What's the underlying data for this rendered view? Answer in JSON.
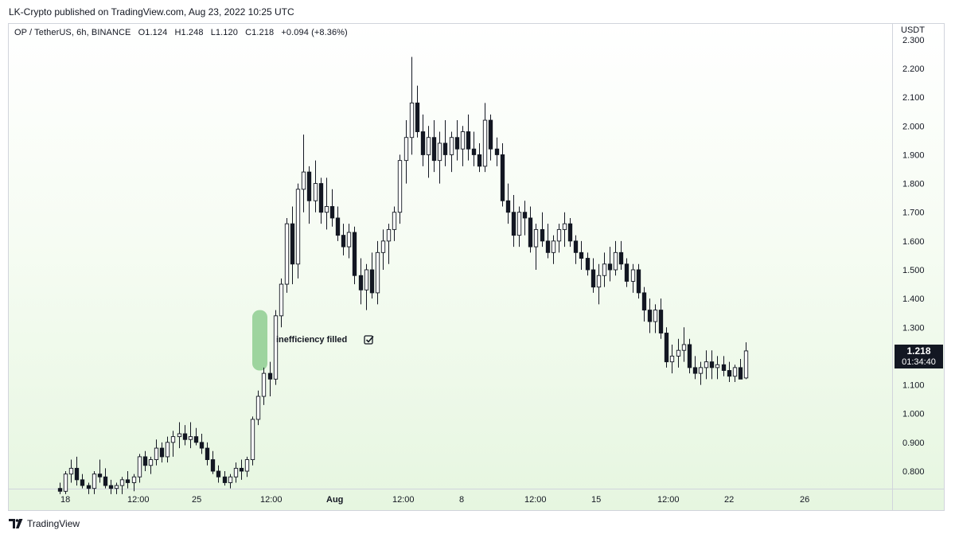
{
  "header": {
    "publisher": "LK-Crypto published on TradingView.com, Aug 23, 2022 10:25 UTC"
  },
  "symbol_info": {
    "pair": "OP / TetherUS, 6h, BINANCE",
    "open": "O1.124",
    "high": "H1.248",
    "low": "L1.120",
    "close": "C1.218",
    "change": "+0.094 (+8.36%)"
  },
  "price_axis": {
    "unit": "USDT",
    "ticks": [
      "2.300",
      "2.200",
      "2.100",
      "2.000",
      "1.900",
      "1.800",
      "1.700",
      "1.600",
      "1.500",
      "1.400",
      "1.300",
      "1.200",
      "1.100",
      "1.000",
      "0.900",
      "0.800"
    ]
  },
  "time_axis": {
    "ticks": [
      "18",
      "12:00",
      "25",
      "12:00",
      "Aug",
      "12:00",
      "8",
      "12:00",
      "15",
      "12:00",
      "22",
      "26"
    ]
  },
  "last_price": {
    "value": "1.218",
    "countdown": "01:34:40"
  },
  "annotation": {
    "label": "inefficiency filled",
    "check_icon": "checkbox-checked-icon"
  },
  "footer": {
    "brand": "TradingView",
    "logo_icon": "tradingview-logo-icon"
  },
  "colors": {
    "highlight": "#81c784",
    "bear": "#131722",
    "bull": "#ffffff"
  },
  "chart_data": {
    "type": "candlestick",
    "title": "OP / TetherUS, 6h, BINANCE",
    "ylabel": "USDT",
    "ylim": [
      0.72,
      2.32
    ],
    "interval": "6h",
    "candles_ohlc": [
      [
        0.74,
        0.76,
        0.72,
        0.73
      ],
      [
        0.73,
        0.8,
        0.72,
        0.79
      ],
      [
        0.79,
        0.84,
        0.76,
        0.81
      ],
      [
        0.81,
        0.85,
        0.75,
        0.77
      ],
      [
        0.77,
        0.79,
        0.74,
        0.75
      ],
      [
        0.75,
        0.76,
        0.72,
        0.74
      ],
      [
        0.74,
        0.8,
        0.72,
        0.79
      ],
      [
        0.79,
        0.84,
        0.76,
        0.78
      ],
      [
        0.78,
        0.81,
        0.74,
        0.75
      ],
      [
        0.75,
        0.77,
        0.72,
        0.74
      ],
      [
        0.74,
        0.76,
        0.72,
        0.75
      ],
      [
        0.75,
        0.78,
        0.72,
        0.77
      ],
      [
        0.77,
        0.8,
        0.74,
        0.76
      ],
      [
        0.76,
        0.79,
        0.73,
        0.78
      ],
      [
        0.78,
        0.86,
        0.76,
        0.85
      ],
      [
        0.85,
        0.87,
        0.8,
        0.82
      ],
      [
        0.82,
        0.85,
        0.79,
        0.84
      ],
      [
        0.84,
        0.91,
        0.82,
        0.88
      ],
      [
        0.88,
        0.9,
        0.83,
        0.85
      ],
      [
        0.85,
        0.92,
        0.83,
        0.9
      ],
      [
        0.9,
        0.94,
        0.85,
        0.92
      ],
      [
        0.92,
        0.97,
        0.88,
        0.93
      ],
      [
        0.93,
        0.96,
        0.89,
        0.91
      ],
      [
        0.91,
        0.97,
        0.88,
        0.92
      ],
      [
        0.92,
        0.95,
        0.89,
        0.9
      ],
      [
        0.9,
        0.93,
        0.86,
        0.88
      ],
      [
        0.88,
        0.9,
        0.82,
        0.84
      ],
      [
        0.84,
        0.87,
        0.79,
        0.8
      ],
      [
        0.8,
        0.82,
        0.76,
        0.78
      ],
      [
        0.78,
        0.8,
        0.75,
        0.76
      ],
      [
        0.76,
        0.79,
        0.74,
        0.78
      ],
      [
        0.78,
        0.83,
        0.76,
        0.81
      ],
      [
        0.81,
        0.84,
        0.77,
        0.8
      ],
      [
        0.8,
        0.85,
        0.78,
        0.84
      ],
      [
        0.84,
        0.99,
        0.82,
        0.98
      ],
      [
        0.98,
        1.08,
        0.96,
        1.06
      ],
      [
        1.06,
        1.16,
        1.03,
        1.14
      ],
      [
        1.14,
        1.18,
        1.06,
        1.12
      ],
      [
        1.12,
        1.36,
        1.1,
        1.34
      ],
      [
        1.34,
        1.47,
        1.3,
        1.45
      ],
      [
        1.45,
        1.68,
        1.42,
        1.66
      ],
      [
        1.66,
        1.72,
        1.45,
        1.52
      ],
      [
        1.52,
        1.8,
        1.47,
        1.78
      ],
      [
        1.78,
        1.97,
        1.7,
        1.84
      ],
      [
        1.84,
        1.86,
        1.66,
        1.74
      ],
      [
        1.74,
        1.88,
        1.7,
        1.8
      ],
      [
        1.8,
        1.82,
        1.66,
        1.7
      ],
      [
        1.7,
        1.82,
        1.64,
        1.72
      ],
      [
        1.72,
        1.78,
        1.65,
        1.68
      ],
      [
        1.68,
        1.72,
        1.6,
        1.62
      ],
      [
        1.62,
        1.66,
        1.55,
        1.58
      ],
      [
        1.58,
        1.66,
        1.54,
        1.63
      ],
      [
        1.63,
        1.65,
        1.45,
        1.48
      ],
      [
        1.48,
        1.54,
        1.38,
        1.43
      ],
      [
        1.43,
        1.52,
        1.36,
        1.5
      ],
      [
        1.5,
        1.56,
        1.4,
        1.42
      ],
      [
        1.42,
        1.6,
        1.38,
        1.56
      ],
      [
        1.56,
        1.64,
        1.5,
        1.6
      ],
      [
        1.6,
        1.66,
        1.52,
        1.64
      ],
      [
        1.64,
        1.72,
        1.6,
        1.7
      ],
      [
        1.7,
        1.9,
        1.66,
        1.88
      ],
      [
        1.88,
        2.02,
        1.8,
        1.96
      ],
      [
        1.96,
        2.24,
        1.9,
        2.08
      ],
      [
        2.08,
        2.14,
        1.96,
        1.98
      ],
      [
        1.98,
        2.04,
        1.86,
        1.9
      ],
      [
        1.9,
        2.0,
        1.82,
        1.96
      ],
      [
        1.96,
        2.02,
        1.84,
        1.88
      ],
      [
        1.88,
        1.98,
        1.8,
        1.94
      ],
      [
        1.94,
        2.02,
        1.86,
        1.9
      ],
      [
        1.9,
        1.98,
        1.84,
        1.96
      ],
      [
        1.96,
        2.02,
        1.88,
        1.92
      ],
      [
        1.92,
        2.0,
        1.86,
        1.98
      ],
      [
        1.98,
        2.04,
        1.88,
        1.92
      ],
      [
        1.92,
        1.98,
        1.86,
        1.9
      ],
      [
        1.9,
        1.94,
        1.84,
        1.86
      ],
      [
        1.86,
        2.08,
        1.84,
        2.02
      ],
      [
        2.02,
        2.04,
        1.88,
        1.92
      ],
      [
        1.92,
        1.96,
        1.86,
        1.9
      ],
      [
        1.9,
        1.94,
        1.72,
        1.74
      ],
      [
        1.74,
        1.8,
        1.66,
        1.7
      ],
      [
        1.7,
        1.76,
        1.58,
        1.62
      ],
      [
        1.62,
        1.72,
        1.58,
        1.7
      ],
      [
        1.7,
        1.74,
        1.62,
        1.68
      ],
      [
        1.68,
        1.72,
        1.56,
        1.58
      ],
      [
        1.58,
        1.66,
        1.5,
        1.64
      ],
      [
        1.64,
        1.7,
        1.58,
        1.6
      ],
      [
        1.6,
        1.66,
        1.54,
        1.56
      ],
      [
        1.56,
        1.62,
        1.52,
        1.6
      ],
      [
        1.6,
        1.66,
        1.56,
        1.64
      ],
      [
        1.64,
        1.7,
        1.58,
        1.66
      ],
      [
        1.66,
        1.68,
        1.58,
        1.6
      ],
      [
        1.6,
        1.62,
        1.52,
        1.56
      ],
      [
        1.56,
        1.6,
        1.5,
        1.54
      ],
      [
        1.54,
        1.56,
        1.48,
        1.5
      ],
      [
        1.5,
        1.54,
        1.42,
        1.44
      ],
      [
        1.44,
        1.52,
        1.38,
        1.48
      ],
      [
        1.48,
        1.56,
        1.44,
        1.52
      ],
      [
        1.52,
        1.58,
        1.46,
        1.5
      ],
      [
        1.5,
        1.6,
        1.48,
        1.56
      ],
      [
        1.56,
        1.6,
        1.5,
        1.52
      ],
      [
        1.52,
        1.54,
        1.44,
        1.46
      ],
      [
        1.46,
        1.52,
        1.42,
        1.5
      ],
      [
        1.5,
        1.52,
        1.4,
        1.42
      ],
      [
        1.42,
        1.44,
        1.32,
        1.36
      ],
      [
        1.36,
        1.4,
        1.28,
        1.32
      ],
      [
        1.32,
        1.38,
        1.28,
        1.36
      ],
      [
        1.36,
        1.4,
        1.26,
        1.28
      ],
      [
        1.28,
        1.3,
        1.16,
        1.18
      ],
      [
        1.18,
        1.24,
        1.14,
        1.2
      ],
      [
        1.2,
        1.26,
        1.16,
        1.22
      ],
      [
        1.22,
        1.3,
        1.18,
        1.24
      ],
      [
        1.24,
        1.26,
        1.14,
        1.16
      ],
      [
        1.16,
        1.2,
        1.12,
        1.14
      ],
      [
        1.14,
        1.18,
        1.1,
        1.16
      ],
      [
        1.16,
        1.22,
        1.12,
        1.18
      ],
      [
        1.18,
        1.22,
        1.12,
        1.16
      ],
      [
        1.16,
        1.2,
        1.12,
        1.17
      ],
      [
        1.17,
        1.2,
        1.13,
        1.15
      ],
      [
        1.15,
        1.18,
        1.11,
        1.13
      ],
      [
        1.13,
        1.17,
        1.11,
        1.16
      ],
      [
        1.16,
        1.19,
        1.12,
        1.12
      ],
      [
        1.124,
        1.248,
        1.12,
        1.218
      ]
    ],
    "x_ticks": [
      "18",
      "12:00",
      "25",
      "12:00",
      "Aug",
      "12:00",
      "8",
      "12:00",
      "15",
      "12:00",
      "22",
      "26"
    ],
    "y_ticks": [
      2.3,
      2.2,
      2.1,
      2.0,
      1.9,
      1.8,
      1.7,
      1.6,
      1.5,
      1.4,
      1.3,
      1.2,
      1.1,
      1.0,
      0.9,
      0.8
    ],
    "last_close": 1.218,
    "highlight_range": {
      "low": 1.15,
      "high": 1.36,
      "meaning": "inefficiency filled"
    },
    "grid": false
  }
}
